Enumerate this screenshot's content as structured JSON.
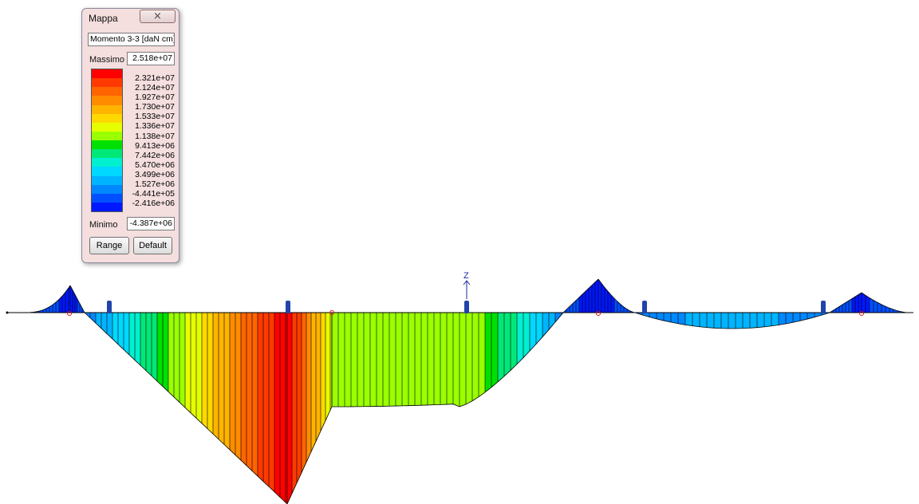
{
  "legend_window": {
    "title": "Mappa",
    "close_symbol": "⨯",
    "quantity": "Momento 3-3 [daN cm]",
    "max_label": "Massimo",
    "max_value": "2.518e+07",
    "min_label": "Minimo",
    "min_value": "-4.387e+06",
    "range_button": "Range",
    "default_button": "Default",
    "tick_labels": [
      "2.321e+07",
      "2.124e+07",
      "1.927e+07",
      "1.730e+07",
      "1.533e+07",
      "1.336e+07",
      "1.138e+07",
      "9.413e+06",
      "7.442e+06",
      "5.470e+06",
      "3.499e+06",
      "1.527e+06",
      "-4.441e+05",
      "-2.416e+06"
    ],
    "colors": [
      "#ff0000",
      "#ff3a00",
      "#ff6400",
      "#ff8c00",
      "#ffb400",
      "#ffd800",
      "#e6ff00",
      "#9aff00",
      "#00e000",
      "#00e878",
      "#00f0d0",
      "#00d8ff",
      "#00b4ff",
      "#0088ff",
      "#0050ff",
      "#0018ff"
    ]
  },
  "diagram": {
    "axis_label": "Z",
    "description_colors": {
      "max": "#ff0000",
      "min": "#0018ff"
    }
  }
}
